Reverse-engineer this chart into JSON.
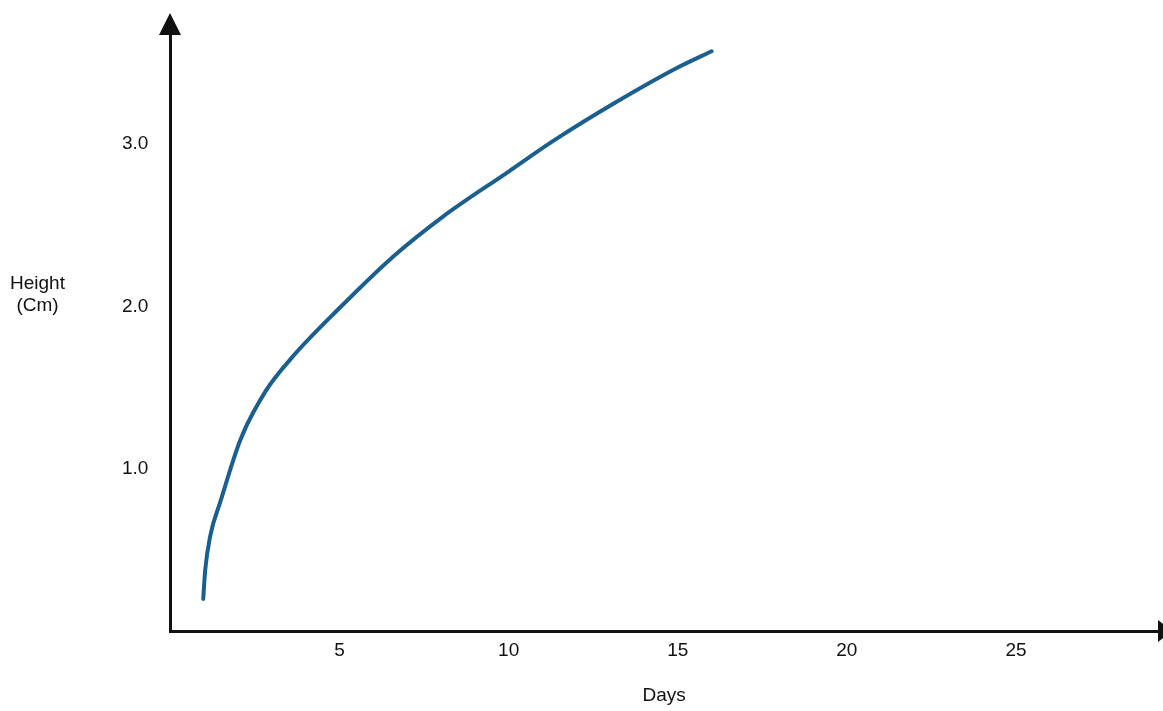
{
  "chart_data": {
    "type": "line",
    "xlabel": "Days",
    "ylabel": "Height\n(Cm)",
    "xlim": [
      0,
      29.2
    ],
    "ylim": [
      0,
      3.68
    ],
    "xticks": [
      5,
      10,
      15,
      20,
      25
    ],
    "yticks": [
      {
        "value": 1,
        "label": "1.0"
      },
      {
        "value": 2,
        "label": "2.0"
      },
      {
        "value": 3,
        "label": "3.0"
      }
    ],
    "grid": false,
    "legend": false,
    "marker": "none",
    "line_style": "solid",
    "series": [
      {
        "color": "#1a5f8f",
        "x": [
          0.97,
          1.03,
          1.18,
          1.48,
          2.07,
          2.82,
          3.57,
          5,
          6.55,
          8.04,
          10,
          11.33,
          13.12,
          15,
          16
        ],
        "values": [
          0.2,
          0.38,
          0.59,
          0.8,
          1.18,
          1.48,
          1.68,
          1.99,
          2.3,
          2.55,
          2.83,
          3.02,
          3.25,
          3.47,
          3.57
        ]
      }
    ]
  }
}
